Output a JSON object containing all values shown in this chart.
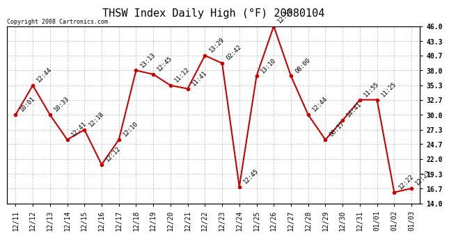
{
  "title": "THSW Index Daily High (°F) 20080104",
  "copyright": "Copyright 2008 Cartronics.com",
  "x_labels": [
    "12/11",
    "12/12",
    "12/13",
    "12/14",
    "12/15",
    "12/16",
    "12/17",
    "12/18",
    "12/19",
    "12/20",
    "12/21",
    "12/22",
    "12/23",
    "12/24",
    "12/25",
    "12/26",
    "12/27",
    "12/28",
    "12/29",
    "12/30",
    "12/31",
    "01/01",
    "01/02",
    "01/03"
  ],
  "y_values": [
    30.0,
    35.3,
    30.0,
    25.5,
    27.3,
    21.0,
    25.5,
    38.0,
    37.3,
    35.3,
    34.7,
    40.7,
    39.3,
    17.0,
    37.0,
    46.0,
    37.0,
    30.0,
    25.5,
    29.0,
    32.7,
    32.7,
    16.0,
    16.7
  ],
  "point_labels": [
    "10:01",
    "12:44",
    "10:33",
    "12:41",
    "12:18",
    "12:12",
    "12:10",
    "13:13",
    "12:45",
    "11:12",
    "11:41",
    "13:29",
    "02:42",
    "12:45",
    "13:10",
    "12:53",
    "08:00",
    "12:44",
    "00:17",
    "14:41",
    "11:55",
    "11:25",
    "12:22",
    "12:23"
  ],
  "ylim": [
    14.0,
    46.0
  ],
  "yticks": [
    14.0,
    16.7,
    19.3,
    22.0,
    24.7,
    27.3,
    30.0,
    32.7,
    35.3,
    38.0,
    40.7,
    43.3,
    46.0
  ],
  "line_color": "#cc0000",
  "marker_color": "#cc0000",
  "bg_color": "#ffffff",
  "grid_color": "#bbbbbb",
  "title_fontsize": 11,
  "tick_fontsize": 7,
  "annot_fontsize": 6.5
}
